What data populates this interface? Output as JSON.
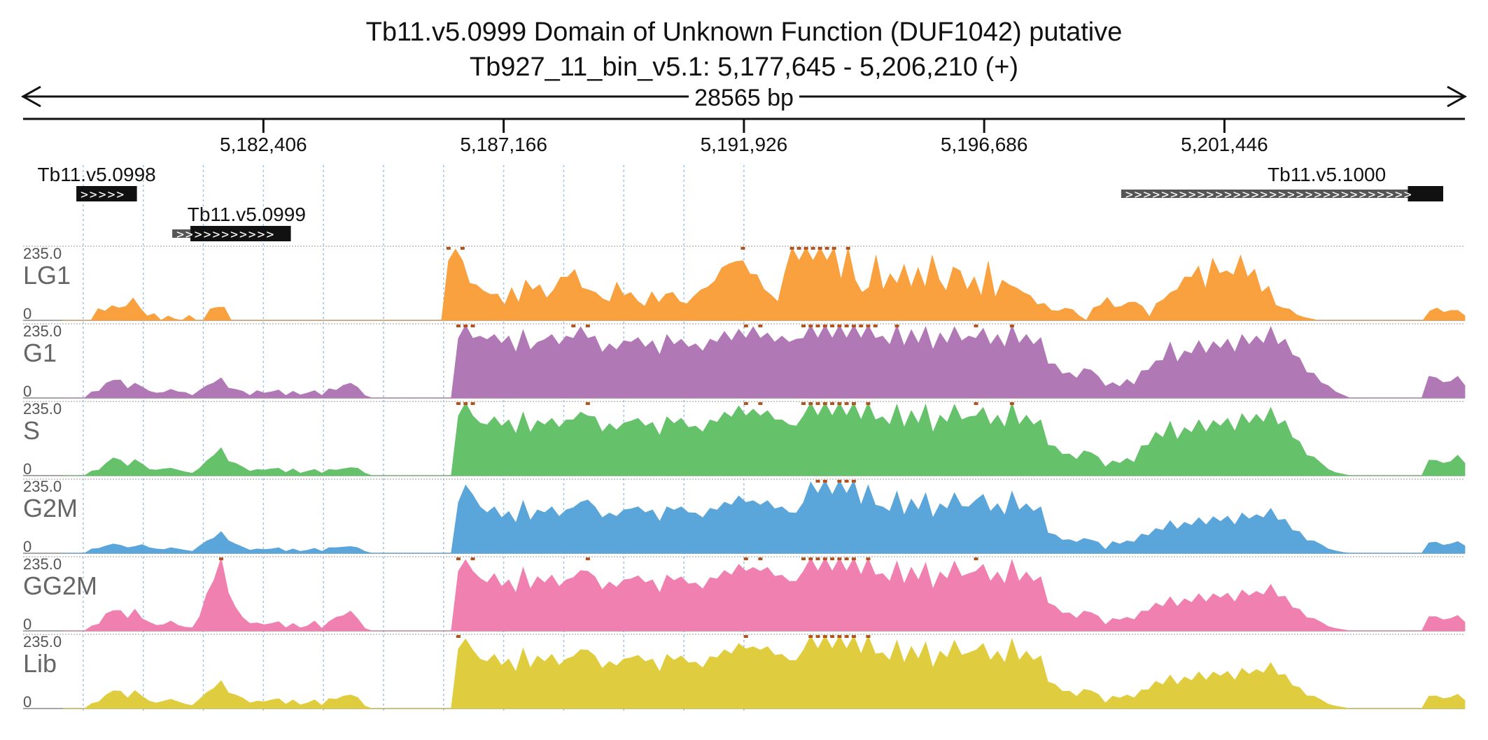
{
  "header": {
    "title_line1": "Tb11.v5.0999  Domain of Unknown Function (DUF1042)  putative",
    "title_line2": "Tb927_11_bin_v5.1: 5,177,645 - 5,206,210 (+)",
    "span_label": "28565 bp"
  },
  "chart_data": {
    "type": "area",
    "region": {
      "chromosome": "Tb927_11_bin_v5.1",
      "start": 5177645,
      "end": 5206210,
      "strand": "+"
    },
    "x_ticks": [
      {
        "value": 5182406,
        "label": "5,182,406"
      },
      {
        "value": 5187166,
        "label": "5,187,166"
      },
      {
        "value": 5191926,
        "label": "5,191,926"
      },
      {
        "value": 5196686,
        "label": "5,196,686"
      },
      {
        "value": 5201446,
        "label": "5,201,446"
      }
    ],
    "genes": [
      {
        "name": "Tb11.v5.0998",
        "start": 5178700,
        "end": 5179900,
        "utr5": null,
        "row": 0,
        "label_start": 5177930
      },
      {
        "name": "Tb11.v5.0999",
        "start": 5180600,
        "end": 5182950,
        "utr5": [
          5180600,
          5180960
        ],
        "row": 1,
        "label_start": 5180900
      },
      {
        "name": "Tb11.v5.1000",
        "start": 5199400,
        "end": 5205780,
        "utr5": [
          5199400,
          5205080
        ],
        "row": 0,
        "label_start": 5202300
      }
    ],
    "y_range": [
      0,
      235.0
    ],
    "y_max_label": "235.0",
    "y_min_label": "0",
    "grid": true,
    "series": [
      {
        "name": "LG1",
        "color": "#f9a03f",
        "values": [
          0,
          0,
          0,
          0,
          0,
          38,
          30,
          58,
          40,
          55,
          72,
          40,
          14,
          22,
          0,
          14,
          4,
          0,
          16,
          0,
          0,
          45,
          42,
          52,
          0,
          0,
          0,
          0,
          0,
          0,
          0,
          0,
          0,
          0,
          0,
          0,
          0,
          0,
          0,
          0,
          0,
          0,
          0,
          0,
          0,
          0,
          0,
          0,
          0,
          0,
          0,
          0,
          0,
          0,
          0,
          235,
          230,
          235,
          120,
          140,
          95,
          102,
          85,
          60,
          105,
          70,
          130,
          120,
          115,
          88,
          98,
          170,
          140,
          200,
          105,
          120,
          90,
          85,
          60,
          150,
          80,
          110,
          62,
          55,
          92,
          70,
          85,
          110,
          60,
          65,
          78,
          120,
          108,
          155,
          170,
          222,
          190,
          235,
          150,
          180,
          100,
          100,
          60,
          190,
          235,
          235,
          235,
          235,
          235,
          235,
          235,
          160,
          235,
          160,
          90,
          130,
          210,
          120,
          150,
          145,
          180,
          130,
          170,
          130,
          210,
          160,
          95,
          210,
          160,
          120,
          140,
          95,
          190,
          90,
          130,
          140,
          105,
          110,
          80,
          62,
          55,
          32,
          30,
          48,
          35,
          14,
          0,
          50,
          48,
          90,
          42,
          55,
          58,
          72,
          45,
          12,
          55,
          82,
          90,
          122,
          140,
          170,
          175,
          125,
          200,
          185,
          160,
          178,
          210,
          170,
          165,
          110,
          110,
          60,
          40,
          44,
          18,
          10,
          5,
          0,
          0,
          0,
          0,
          0,
          0,
          0,
          0,
          0,
          0,
          0,
          0,
          0,
          0,
          0,
          0,
          30,
          40,
          26,
          32,
          32,
          15
        ]
      },
      {
        "name": "G1",
        "color": "#b178b6",
        "values": [
          0,
          0,
          0,
          0,
          20,
          22,
          48,
          70,
          58,
          30,
          48,
          36,
          22,
          16,
          18,
          28,
          20,
          18,
          8,
          25,
          40,
          60,
          65,
          32,
          28,
          22,
          8,
          24,
          16,
          20,
          26,
          8,
          22,
          10,
          16,
          24,
          8,
          30,
          25,
          50,
          48,
          42,
          8,
          0,
          0,
          0,
          0,
          0,
          0,
          0,
          0,
          0,
          0,
          0,
          0,
          235,
          235,
          235,
          200,
          230,
          205,
          215,
          200,
          180,
          220,
          190,
          180,
          230,
          205,
          210,
          200,
          235,
          230,
          235,
          200,
          180,
          175,
          190,
          185,
          220,
          195,
          200,
          185,
          170,
          205,
          210,
          190,
          200,
          175,
          185,
          190,
          220,
          215,
          225,
          222,
          235,
          230,
          235,
          210,
          220,
          200,
          220,
          190,
          235,
          235,
          235,
          235,
          235,
          235,
          235,
          235,
          235,
          235,
          235,
          200,
          210,
          235,
          205,
          220,
          215,
          230,
          190,
          210,
          215,
          230,
          225,
          200,
          235,
          225,
          210,
          205,
          200,
          235,
          215,
          205,
          210,
          195,
          135,
          110,
          95,
          82,
          78,
          95,
          110,
          70,
          38,
          50,
          45,
          60,
          52,
          88,
          110,
          120,
          148,
          180,
          142,
          152,
          175,
          185,
          175,
          182,
          195,
          190,
          180,
          205,
          210,
          200,
          215,
          230,
          210,
          190,
          170,
          130,
          100,
          80,
          60,
          40,
          20,
          10,
          0,
          0,
          0,
          0,
          0,
          0,
          0,
          0,
          0,
          0,
          0,
          70,
          80,
          50,
          65,
          70,
          40
        ]
      },
      {
        "name": "S",
        "color": "#65c16a",
        "values": [
          0,
          0,
          0,
          0,
          15,
          18,
          40,
          70,
          50,
          30,
          52,
          38,
          20,
          18,
          22,
          24,
          18,
          12,
          8,
          24,
          48,
          80,
          90,
          56,
          40,
          28,
          14,
          20,
          18,
          22,
          24,
          10,
          22,
          8,
          14,
          20,
          8,
          20,
          18,
          22,
          26,
          24,
          8,
          0,
          0,
          0,
          0,
          0,
          0,
          0,
          0,
          0,
          0,
          0,
          0,
          235,
          235,
          235,
          170,
          200,
          190,
          195,
          180,
          165,
          205,
          170,
          178,
          200,
          185,
          190,
          180,
          220,
          205,
          235,
          190,
          172,
          168,
          180,
          170,
          215,
          185,
          195,
          172,
          158,
          190,
          205,
          185,
          190,
          160,
          172,
          180,
          210,
          205,
          230,
          225,
          235,
          215,
          235,
          210,
          220,
          180,
          200,
          160,
          235,
          235,
          235,
          235,
          235,
          235,
          235,
          235,
          220,
          235,
          220,
          190,
          200,
          230,
          190,
          210,
          205,
          230,
          170,
          195,
          210,
          230,
          220,
          190,
          235,
          220,
          200,
          195,
          190,
          235,
          200,
          195,
          200,
          180,
          120,
          95,
          84,
          70,
          64,
          80,
          90,
          60,
          28,
          48,
          40,
          56,
          52,
          96,
          120,
          140,
          150,
          175,
          142,
          155,
          170,
          180,
          172,
          178,
          195,
          185,
          175,
          200,
          205,
          198,
          210,
          220,
          200,
          178,
          150,
          110,
          80,
          60,
          40,
          20,
          10,
          5,
          0,
          0,
          0,
          0,
          0,
          0,
          0,
          0,
          0,
          0,
          0,
          50,
          60,
          40,
          55,
          66,
          40
        ]
      },
      {
        "name": "G2M",
        "color": "#5aa5da",
        "values": [
          0,
          0,
          0,
          0,
          14,
          16,
          24,
          30,
          26,
          18,
          22,
          28,
          18,
          14,
          12,
          18,
          14,
          10,
          6,
          24,
          40,
          60,
          70,
          50,
          30,
          20,
          10,
          14,
          12,
          14,
          18,
          6,
          14,
          6,
          10,
          16,
          6,
          18,
          18,
          20,
          22,
          18,
          6,
          0,
          0,
          0,
          0,
          0,
          0,
          0,
          0,
          0,
          0,
          0,
          0,
          200,
          220,
          230,
          150,
          160,
          150,
          140,
          135,
          120,
          170,
          130,
          140,
          160,
          150,
          145,
          140,
          180,
          165,
          210,
          150,
          140,
          130,
          145,
          140,
          175,
          150,
          160,
          140,
          125,
          150,
          170,
          150,
          160,
          130,
          140,
          145,
          170,
          165,
          190,
          185,
          200,
          170,
          190,
          170,
          175,
          150,
          160,
          130,
          200,
          230,
          235,
          235,
          230,
          235,
          235,
          235,
          190,
          220,
          190,
          150,
          165,
          200,
          150,
          175,
          170,
          195,
          140,
          160,
          175,
          195,
          185,
          150,
          210,
          190,
          165,
          160,
          150,
          200,
          170,
          160,
          165,
          150,
          80,
          60,
          52,
          44,
          36,
          48,
          52,
          36,
          12,
          38,
          30,
          40,
          44,
          62,
          70,
          80,
          90,
          105,
          95,
          100,
          110,
          115,
          112,
          118,
          125,
          120,
          112,
          130,
          135,
          125,
          140,
          145,
          130,
          110,
          90,
          70,
          50,
          40,
          28,
          14,
          8,
          3,
          0,
          0,
          0,
          0,
          0,
          0,
          0,
          0,
          0,
          0,
          0,
          34,
          44,
          26,
          30,
          38,
          24
        ]
      },
      {
        "name": "GG2M",
        "color": "#ef80b0",
        "values": [
          0,
          0,
          0,
          0,
          16,
          22,
          56,
          80,
          66,
          40,
          70,
          48,
          28,
          18,
          20,
          32,
          18,
          12,
          10,
          56,
          120,
          200,
          235,
          150,
          76,
          52,
          24,
          26,
          20,
          24,
          30,
          10,
          24,
          10,
          16,
          32,
          8,
          30,
          44,
          60,
          64,
          48,
          8,
          0,
          0,
          0,
          0,
          0,
          0,
          0,
          0,
          0,
          0,
          0,
          0,
          235,
          230,
          235,
          170,
          190,
          185,
          175,
          165,
          150,
          205,
          165,
          175,
          190,
          180,
          175,
          165,
          210,
          195,
          235,
          175,
          162,
          158,
          172,
          165,
          205,
          178,
          190,
          165,
          150,
          180,
          198,
          175,
          185,
          155,
          165,
          172,
          205,
          195,
          220,
          215,
          235,
          205,
          235,
          205,
          215,
          180,
          195,
          160,
          235,
          235,
          235,
          235,
          235,
          235,
          235,
          235,
          220,
          235,
          220,
          185,
          195,
          225,
          185,
          205,
          200,
          220,
          165,
          190,
          205,
          225,
          215,
          185,
          235,
          215,
          195,
          190,
          185,
          230,
          195,
          190,
          195,
          175,
          110,
          80,
          70,
          58,
          50,
          64,
          72,
          48,
          20,
          40,
          36,
          44,
          44,
          64,
          78,
          90,
          96,
          110,
          96,
          104,
          112,
          120,
          114,
          120,
          130,
          122,
          114,
          132,
          138,
          128,
          142,
          150,
          134,
          112,
          92,
          70,
          52,
          40,
          28,
          14,
          8,
          4,
          0,
          0,
          0,
          0,
          0,
          0,
          0,
          0,
          0,
          0,
          0,
          46,
          56,
          36,
          40,
          50,
          28
        ]
      },
      {
        "name": "Lib",
        "color": "#e0cd3f",
        "values": [
          0,
          0,
          0,
          0,
          16,
          22,
          44,
          70,
          56,
          34,
          58,
          40,
          24,
          18,
          24,
          30,
          22,
          14,
          10,
          30,
          52,
          80,
          90,
          62,
          44,
          34,
          18,
          24,
          22,
          28,
          32,
          14,
          28,
          12,
          18,
          28,
          10,
          32,
          30,
          40,
          44,
          36,
          8,
          0,
          0,
          0,
          0,
          0,
          0,
          0,
          0,
          0,
          0,
          0,
          0,
          235,
          225,
          230,
          160,
          185,
          175,
          170,
          160,
          145,
          195,
          160,
          170,
          185,
          175,
          170,
          160,
          205,
          190,
          230,
          170,
          158,
          152,
          168,
          160,
          200,
          172,
          185,
          160,
          145,
          175,
          190,
          170,
          180,
          150,
          160,
          168,
          200,
          190,
          215,
          210,
          235,
          200,
          230,
          200,
          210,
          175,
          190,
          155,
          230,
          235,
          235,
          235,
          235,
          235,
          235,
          235,
          215,
          235,
          215,
          180,
          190,
          220,
          180,
          200,
          195,
          215,
          160,
          185,
          200,
          220,
          210,
          180,
          230,
          210,
          190,
          185,
          180,
          225,
          190,
          185,
          190,
          170,
          105,
          78,
          68,
          56,
          48,
          62,
          70,
          46,
          18,
          40,
          34,
          44,
          42,
          60,
          74,
          88,
          94,
          108,
          94,
          102,
          110,
          118,
          112,
          118,
          128,
          120,
          112,
          130,
          135,
          126,
          140,
          148,
          132,
          110,
          90,
          68,
          50,
          40,
          28,
          14,
          8,
          4,
          0,
          0,
          0,
          0,
          0,
          0,
          0,
          0,
          0,
          0,
          0,
          40,
          50,
          32,
          36,
          46,
          26
        ]
      }
    ]
  }
}
